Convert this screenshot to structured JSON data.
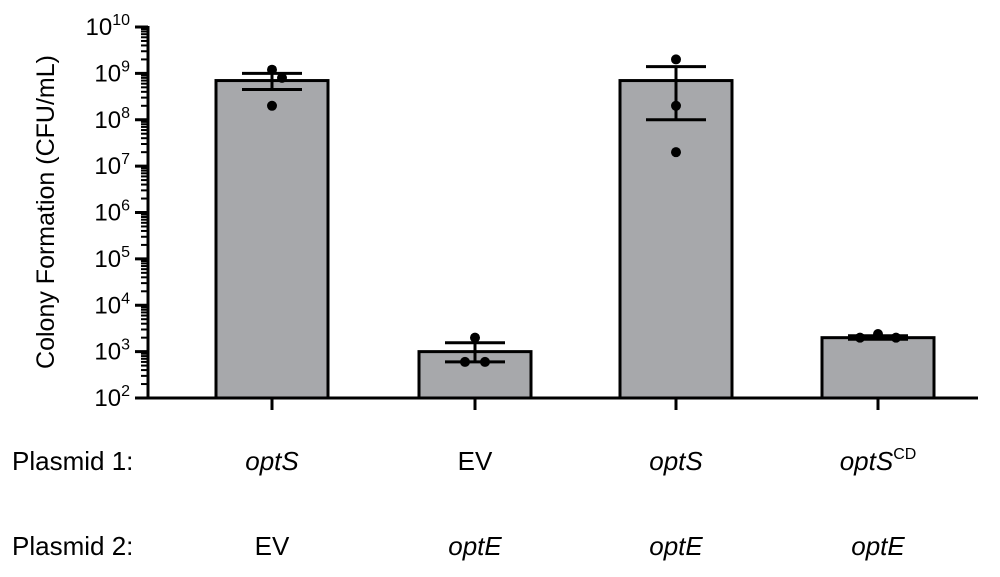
{
  "chart_data": {
    "type": "bar",
    "ylabel": "Colony Formation (CFU/mL)",
    "yscale": "log",
    "ylim": [
      100,
      10000000000
    ],
    "y_tick_labels": [
      {
        "base": "10",
        "exp": "2"
      },
      {
        "base": "10",
        "exp": "3"
      },
      {
        "base": "10",
        "exp": "4"
      },
      {
        "base": "10",
        "exp": "5"
      },
      {
        "base": "10",
        "exp": "6"
      },
      {
        "base": "10",
        "exp": "7"
      },
      {
        "base": "10",
        "exp": "8"
      },
      {
        "base": "10",
        "exp": "9"
      },
      {
        "base": "10",
        "exp": "10"
      }
    ],
    "grid": false,
    "bar_color": "#a7a8ab",
    "row_labels": [
      "Plasmid 1:",
      "Plasmid 2:"
    ],
    "categories": [
      {
        "plasmid1": "optS",
        "plasmid1_italic": true,
        "plasmid1_sup": "",
        "plasmid2": "EV",
        "plasmid2_italic": false
      },
      {
        "plasmid1": "EV",
        "plasmid1_italic": false,
        "plasmid1_sup": "",
        "plasmid2": "optE",
        "plasmid2_italic": true
      },
      {
        "plasmid1": "optS",
        "plasmid1_italic": true,
        "plasmid1_sup": "",
        "plasmid2": "optE",
        "plasmid2_italic": true
      },
      {
        "plasmid1": "optS",
        "plasmid1_italic": true,
        "plasmid1_sup": "CD",
        "plasmid2": "optE",
        "plasmid2_italic": true
      }
    ],
    "values": [
      700000000,
      1000,
      700000000,
      2000
    ],
    "error_bars": [
      {
        "low": 450000000,
        "high": 1000000000
      },
      {
        "low": 600,
        "high": 1550
      },
      {
        "low": 100000000,
        "high": 1400000000
      },
      {
        "low": 1850,
        "high": 2200
      }
    ],
    "points": [
      [
        1200000000,
        800000000,
        200000000
      ],
      [
        2000,
        600,
        600
      ],
      [
        2000000000,
        200000000,
        20000000
      ],
      [
        2000,
        2400,
        2000
      ]
    ]
  }
}
